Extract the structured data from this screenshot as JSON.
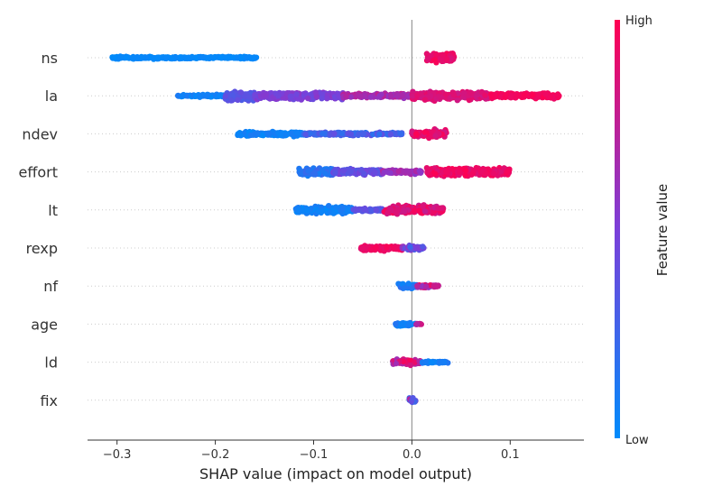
{
  "chart_data": {
    "type": "scatter",
    "subtype": "beeswarm",
    "xlabel": "SHAP value (impact on model output)",
    "xlim": [
      -0.33,
      0.175
    ],
    "xticks": [
      {
        "value": -0.3,
        "label": "−0.3"
      },
      {
        "value": -0.2,
        "label": "−0.2"
      },
      {
        "value": -0.1,
        "label": "−0.1"
      },
      {
        "value": 0.0,
        "label": "0.0"
      },
      {
        "value": 0.1,
        "label": "0.1"
      }
    ],
    "colorbar": {
      "title": "Feature value",
      "high_label": "High",
      "low_label": "Low",
      "low_color": "#008bfb",
      "high_color": "#ff0052",
      "mid_color": "#7b3fd9"
    },
    "zero_line": true,
    "features": [
      {
        "name": "ns",
        "segments": [
          {
            "x0": -0.305,
            "x1": -0.158,
            "spread": 0.25,
            "v0": 0.0,
            "v1": 0.05
          },
          {
            "x0": 0.015,
            "x1": 0.043,
            "spread": 0.9,
            "v0": 0.85,
            "v1": 1.0
          }
        ]
      },
      {
        "name": "la",
        "segments": [
          {
            "x0": -0.238,
            "x1": -0.19,
            "spread": 0.25,
            "v0": 0.0,
            "v1": 0.12
          },
          {
            "x0": -0.19,
            "x1": -0.16,
            "spread": 1.0,
            "v0": 0.3,
            "v1": 0.42
          },
          {
            "x0": -0.16,
            "x1": -0.07,
            "spread": 0.7,
            "v0": 0.42,
            "v1": 0.58
          },
          {
            "x0": -0.07,
            "x1": 0.0,
            "spread": 0.45,
            "v0": 0.58,
            "v1": 0.78
          },
          {
            "x0": 0.0,
            "x1": 0.08,
            "spread": 0.85,
            "v0": 0.8,
            "v1": 0.92
          },
          {
            "x0": 0.08,
            "x1": 0.15,
            "spread": 0.55,
            "v0": 0.92,
            "v1": 1.0
          }
        ]
      },
      {
        "name": "ndev",
        "segments": [
          {
            "x0": -0.178,
            "x1": -0.11,
            "spread": 0.45,
            "v0": 0.0,
            "v1": 0.12
          },
          {
            "x0": -0.11,
            "x1": -0.01,
            "spread": 0.3,
            "v0": 0.15,
            "v1": 0.42
          },
          {
            "x0": 0.0,
            "x1": 0.035,
            "spread": 0.85,
            "v0": 0.8,
            "v1": 1.0
          }
        ]
      },
      {
        "name": "effort",
        "segments": [
          {
            "x0": -0.115,
            "x1": -0.08,
            "spread": 0.8,
            "v0": 0.05,
            "v1": 0.25
          },
          {
            "x0": -0.08,
            "x1": -0.03,
            "spread": 0.6,
            "v0": 0.3,
            "v1": 0.5
          },
          {
            "x0": -0.03,
            "x1": 0.01,
            "spread": 0.4,
            "v0": 0.55,
            "v1": 0.72
          },
          {
            "x0": 0.015,
            "x1": 0.1,
            "spread": 0.9,
            "v0": 0.85,
            "v1": 1.0
          }
        ]
      },
      {
        "name": "lt",
        "segments": [
          {
            "x0": -0.118,
            "x1": -0.06,
            "spread": 0.7,
            "v0": 0.0,
            "v1": 0.12
          },
          {
            "x0": -0.06,
            "x1": -0.03,
            "spread": 0.3,
            "v0": 0.3,
            "v1": 0.45
          },
          {
            "x0": -0.03,
            "x1": 0.032,
            "spread": 0.9,
            "v0": 0.75,
            "v1": 1.0
          }
        ]
      },
      {
        "name": "rexp",
        "segments": [
          {
            "x0": -0.052,
            "x1": -0.01,
            "spread": 0.55,
            "v0": 0.88,
            "v1": 1.0
          },
          {
            "x0": -0.01,
            "x1": 0.012,
            "spread": 0.5,
            "v0": 0.2,
            "v1": 0.7
          }
        ]
      },
      {
        "name": "nf",
        "segments": [
          {
            "x0": -0.014,
            "x1": 0.005,
            "spread": 0.55,
            "v0": 0.0,
            "v1": 0.2
          },
          {
            "x0": 0.005,
            "x1": 0.027,
            "spread": 0.3,
            "v0": 0.55,
            "v1": 1.0
          }
        ]
      },
      {
        "name": "age",
        "segments": [
          {
            "x0": -0.017,
            "x1": 0.004,
            "spread": 0.35,
            "v0": 0.0,
            "v1": 0.15
          },
          {
            "x0": 0.004,
            "x1": 0.01,
            "spread": 0.15,
            "v0": 0.6,
            "v1": 0.9
          }
        ]
      },
      {
        "name": "ld",
        "segments": [
          {
            "x0": -0.02,
            "x1": 0.01,
            "spread": 0.6,
            "v0": 0.6,
            "v1": 1.0
          },
          {
            "x0": 0.01,
            "x1": 0.037,
            "spread": 0.2,
            "v0": 0.0,
            "v1": 0.15
          }
        ]
      },
      {
        "name": "fix",
        "segments": [
          {
            "x0": -0.003,
            "x1": 0.004,
            "spread": 0.6,
            "v0": 0.1,
            "v1": 1.0
          }
        ]
      }
    ]
  }
}
